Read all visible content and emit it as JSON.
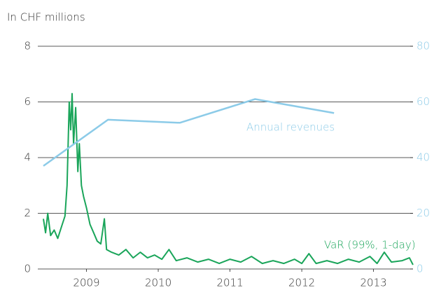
{
  "chart_data": {
    "type": "line",
    "subtitle": "In CHF millions",
    "xlim": [
      2008.4,
      2013.55
    ],
    "xticks": [
      2009,
      2010,
      2011,
      2012,
      2013
    ],
    "ylim": [
      0,
      8
    ],
    "yticks": [
      0,
      2,
      4,
      6,
      8
    ],
    "y2lim": [
      0,
      80
    ],
    "y2ticks": [
      0,
      20,
      40,
      60,
      80
    ],
    "grid": true,
    "series": [
      {
        "name": "VaR (99%, 1-day)",
        "color": "#1aa55a",
        "x": [
          2008.4,
          2008.43,
          2008.46,
          2008.5,
          2008.55,
          2008.6,
          2008.65,
          2008.7,
          2008.73,
          2008.76,
          2008.78,
          2008.8,
          2008.82,
          2008.85,
          2008.88,
          2008.9,
          2008.93,
          2008.96,
          2009.0,
          2009.05,
          2009.1,
          2009.15,
          2009.2,
          2009.25,
          2009.28,
          2009.35,
          2009.45,
          2009.55,
          2009.65,
          2009.75,
          2009.85,
          2009.95,
          2010.05,
          2010.15,
          2010.25,
          2010.4,
          2010.55,
          2010.7,
          2010.85,
          2011.0,
          2011.15,
          2011.3,
          2011.45,
          2011.6,
          2011.75,
          2011.9,
          2012.0,
          2012.1,
          2012.2,
          2012.35,
          2012.5,
          2012.65,
          2012.8,
          2012.95,
          2013.05,
          2013.15,
          2013.25,
          2013.4,
          2013.5,
          2013.55
        ],
        "values": [
          1.8,
          1.3,
          2.0,
          1.2,
          1.4,
          1.1,
          1.5,
          1.9,
          3.0,
          6.0,
          5.0,
          6.3,
          4.5,
          5.8,
          3.5,
          4.5,
          3.0,
          2.6,
          2.2,
          1.6,
          1.3,
          1.0,
          0.9,
          1.8,
          0.7,
          0.6,
          0.5,
          0.7,
          0.4,
          0.6,
          0.4,
          0.5,
          0.35,
          0.7,
          0.3,
          0.4,
          0.25,
          0.35,
          0.2,
          0.35,
          0.25,
          0.45,
          0.2,
          0.3,
          0.2,
          0.35,
          0.2,
          0.55,
          0.2,
          0.3,
          0.2,
          0.35,
          0.25,
          0.45,
          0.2,
          0.6,
          0.25,
          0.3,
          0.4,
          0.15
        ]
      },
      {
        "name": "Annual revenues",
        "color": "#8ccbe8",
        "axis": "y2",
        "x": [
          2008.4,
          2009.3,
          2010.3,
          2011.35,
          2012.45
        ],
        "values": [
          37,
          53.6,
          52.5,
          61,
          56
        ]
      }
    ]
  }
}
